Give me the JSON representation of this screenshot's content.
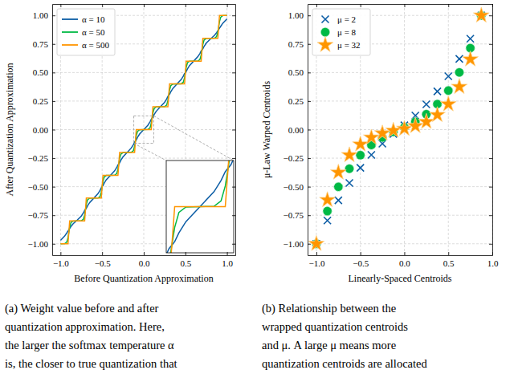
{
  "chart_data": [
    {
      "type": "line",
      "x_label": "Before Quantization Approximation",
      "y_label": "After Quantization Approximation",
      "x": [
        -1,
        -0.95,
        -0.925,
        -0.91,
        -0.9,
        -0.89,
        -0.875,
        -0.85,
        -0.8,
        -0.75,
        -0.725,
        -0.71,
        -0.7,
        -0.69,
        -0.675,
        -0.65,
        -0.6,
        -0.55,
        -0.525,
        -0.51,
        -0.5,
        -0.49,
        -0.475,
        -0.45,
        -0.4,
        -0.35,
        -0.325,
        -0.31,
        -0.3,
        -0.29,
        -0.275,
        -0.25,
        -0.2,
        -0.15,
        -0.125,
        -0.11,
        -0.1,
        -0.09,
        -0.075,
        -0.05,
        0,
        0.05,
        0.075,
        0.09,
        0.1,
        0.11,
        0.125,
        0.15,
        0.2,
        0.25,
        0.275,
        0.29,
        0.3,
        0.31,
        0.325,
        0.35,
        0.4,
        0.45,
        0.475,
        0.49,
        0.5,
        0.51,
        0.525,
        0.55,
        0.6,
        0.65,
        0.675,
        0.69,
        0.7,
        0.71,
        0.725,
        0.75,
        0.8,
        0.85,
        0.875,
        0.89,
        0.9,
        0.91,
        0.925,
        0.95,
        1
      ],
      "series": [
        {
          "name": "α = 10",
          "color": "#0C5DA5",
          "values": [
            -0.97,
            -0.932,
            -0.905,
            -0.888,
            -0.877,
            -0.866,
            -0.849,
            -0.826,
            -0.793,
            -0.757,
            -0.729,
            -0.707,
            -0.698,
            -0.69,
            -0.667,
            -0.639,
            -0.6,
            -0.561,
            -0.532,
            -0.509,
            -0.5,
            -0.491,
            -0.468,
            -0.439,
            -0.4,
            -0.361,
            -0.332,
            -0.309,
            -0.3,
            -0.291,
            -0.268,
            -0.239,
            -0.2,
            -0.161,
            -0.132,
            -0.109,
            -0.1,
            -0.091,
            -0.068,
            -0.039,
            0,
            0.039,
            0.068,
            0.091,
            0.1,
            0.109,
            0.132,
            0.161,
            0.2,
            0.239,
            0.268,
            0.291,
            0.3,
            0.309,
            0.332,
            0.361,
            0.4,
            0.439,
            0.468,
            0.491,
            0.5,
            0.509,
            0.532,
            0.561,
            0.6,
            0.639,
            0.667,
            0.69,
            0.698,
            0.707,
            0.729,
            0.757,
            0.793,
            0.826,
            0.849,
            0.866,
            0.877,
            0.888,
            0.905,
            0.932,
            0.97
          ]
        },
        {
          "name": "α = 50",
          "color": "#00B945",
          "values": [
            -1,
            -0.999,
            -0.985,
            -0.946,
            -0.9,
            -0.854,
            -0.815,
            -0.801,
            -0.8,
            -0.799,
            -0.785,
            -0.746,
            -0.7,
            -0.654,
            -0.615,
            -0.601,
            -0.6,
            -0.599,
            -0.585,
            -0.546,
            -0.5,
            -0.454,
            -0.415,
            -0.401,
            -0.4,
            -0.399,
            -0.385,
            -0.346,
            -0.3,
            -0.254,
            -0.215,
            -0.201,
            -0.2,
            -0.199,
            -0.185,
            -0.146,
            -0.1,
            -0.054,
            -0.015,
            -0.001,
            0,
            0.001,
            0.015,
            0.054,
            0.1,
            0.146,
            0.185,
            0.199,
            0.2,
            0.201,
            0.215,
            0.254,
            0.3,
            0.346,
            0.385,
            0.399,
            0.4,
            0.401,
            0.415,
            0.454,
            0.5,
            0.546,
            0.585,
            0.599,
            0.6,
            0.601,
            0.615,
            0.654,
            0.7,
            0.746,
            0.785,
            0.799,
            0.8,
            0.801,
            0.815,
            0.854,
            0.9,
            0.946,
            0.985,
            0.999,
            1
          ]
        },
        {
          "name": "α = 500",
          "color": "#FF9500",
          "values": [
            -1,
            -1,
            -1,
            -1,
            -0.9,
            -0.8,
            -0.8,
            -0.8,
            -0.8,
            -0.8,
            -0.8,
            -0.8,
            -0.7,
            -0.6,
            -0.6,
            -0.6,
            -0.6,
            -0.6,
            -0.6,
            -0.6,
            -0.5,
            -0.4,
            -0.4,
            -0.4,
            -0.4,
            -0.4,
            -0.4,
            -0.4,
            -0.3,
            -0.2,
            -0.2,
            -0.2,
            -0.2,
            -0.2,
            -0.2,
            -0.2,
            -0.1,
            0,
            0,
            0,
            0,
            0,
            0,
            0,
            0.1,
            0.2,
            0.2,
            0.2,
            0.2,
            0.2,
            0.2,
            0.2,
            0.3,
            0.4,
            0.4,
            0.4,
            0.4,
            0.4,
            0.4,
            0.4,
            0.5,
            0.6,
            0.6,
            0.6,
            0.6,
            0.6,
            0.6,
            0.6,
            0.7,
            0.8,
            0.8,
            0.8,
            0.8,
            0.8,
            0.8,
            0.8,
            0.9,
            1,
            1,
            1,
            1
          ]
        }
      ],
      "xlim": [
        -1.1,
        1.1
      ],
      "ylim": [
        -1.1,
        1.1
      ],
      "xticks": [
        {
          "value": -1,
          "label": "−1.0"
        },
        {
          "value": -0.5,
          "label": "−0.5"
        },
        {
          "value": 0,
          "label": "0.0"
        },
        0.5,
        {
          "value": 1,
          "label": "1.0"
        }
      ],
      "yticks": [
        {
          "value": -1,
          "label": "−1.00"
        },
        {
          "value": -0.75,
          "label": "−0.75"
        },
        {
          "value": -0.5,
          "label": "−0.50"
        },
        {
          "value": -0.25,
          "label": "−0.25"
        },
        {
          "value": 0,
          "label": "0.00"
        },
        0.25,
        {
          "value": 0.5,
          "label": "0.50"
        },
        0.75,
        {
          "value": 1,
          "label": "1.00"
        }
      ],
      "grid": true,
      "legend": "upper left",
      "inset": {
        "xlim": [
          -0.12,
          0.12
        ],
        "ylim": [
          -0.12,
          0.12
        ]
      },
      "caption": [
        "(a) Weight value before and after",
        "quantization approximation. Here,",
        "the larger the softmax temperature α",
        "is, the closer to true quantization that"
      ]
    },
    {
      "type": "scatter",
      "x_label": "Linearly-Spaced Centroids",
      "y_label": "μ-Law Warped Centroids",
      "x": [
        -1,
        -0.875,
        -0.75,
        -0.625,
        -0.5,
        -0.375,
        -0.25,
        -0.125,
        0,
        0.125,
        0.25,
        0.375,
        0.5,
        0.625,
        0.75,
        0.875
      ],
      "series": [
        {
          "name": "μ = 2",
          "color": "#0C5DA5",
          "marker": "x",
          "values": [
            -1,
            -0.796,
            -0.619,
            -0.467,
            -0.335,
            -0.221,
            -0.123,
            -0.038,
            0.038,
            0.123,
            0.221,
            0.335,
            0.467,
            0.619,
            0.796,
            1
          ]
        },
        {
          "name": "μ = 8",
          "color": "#00B945",
          "marker": "circle",
          "values": [
            -1,
            -0.714,
            -0.501,
            -0.342,
            -0.224,
            -0.135,
            -0.069,
            -0.02,
            0.02,
            0.069,
            0.135,
            0.224,
            0.342,
            0.501,
            0.714,
            1
          ]
        },
        {
          "name": "μ = 32",
          "color": "#FF9500",
          "marker": "star",
          "values": [
            -1,
            -0.616,
            -0.375,
            -0.223,
            -0.129,
            -0.069,
            -0.032,
            -0.008,
            0.008,
            0.032,
            0.069,
            0.129,
            0.223,
            0.375,
            0.616,
            1
          ]
        }
      ],
      "xlim": [
        -1.1,
        1.0
      ],
      "ylim": [
        -1.1,
        1.1
      ],
      "xticks": [
        {
          "value": -1,
          "label": "−1.0"
        },
        {
          "value": -0.5,
          "label": "−0.5"
        },
        {
          "value": 0,
          "label": "0.0"
        },
        0.5,
        {
          "value": 1,
          "label": "1.0"
        }
      ],
      "yticks": [
        {
          "value": -1,
          "label": "−1.00"
        },
        {
          "value": -0.75,
          "label": "−0.75"
        },
        {
          "value": -0.5,
          "label": "−0.50"
        },
        {
          "value": -0.25,
          "label": "−0.25"
        },
        {
          "value": 0,
          "label": "0.00"
        },
        0.25,
        {
          "value": 0.5,
          "label": "0.50"
        },
        0.75,
        {
          "value": 1,
          "label": "1.00"
        }
      ],
      "grid": true,
      "legend": "upper left",
      "caption": [
        "(b) Relationship between the",
        "wrapped quantization centroids",
        "and μ. A large μ means more",
        "quantization centroids are allocated"
      ]
    }
  ]
}
